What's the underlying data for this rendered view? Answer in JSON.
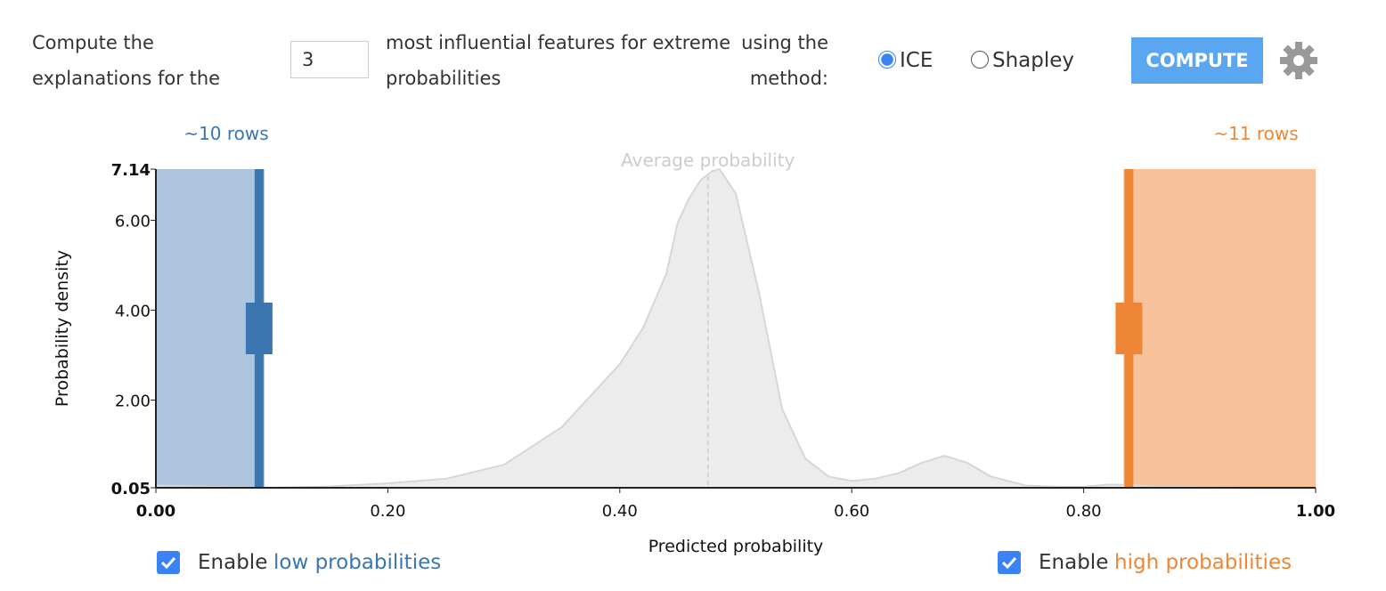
{
  "controls": {
    "sentence_1": "Compute the explanations for the",
    "feature_count": "3",
    "sentence_2": "most influential features for extreme probabilities",
    "sentence_3": "using the method:",
    "methods": [
      {
        "label": "ICE",
        "checked": true
      },
      {
        "label": "Shapley",
        "checked": false
      }
    ],
    "button": "COMPUTE"
  },
  "chart_data": {
    "type": "area",
    "annotation": "Average probability",
    "x_label": "Predicted probability",
    "y_label": "Probability density",
    "x": [
      0.0,
      0.05,
      0.1,
      0.15,
      0.2,
      0.25,
      0.3,
      0.35,
      0.4,
      0.42,
      0.44,
      0.45,
      0.46,
      0.47,
      0.48,
      0.486,
      0.5,
      0.52,
      0.54,
      0.56,
      0.58,
      0.6,
      0.62,
      0.64,
      0.66,
      0.68,
      0.7,
      0.72,
      0.75,
      0.78,
      0.8,
      0.82,
      0.84,
      0.86,
      0.9,
      0.95,
      1.0
    ],
    "values": [
      0.1,
      0.07,
      0.05,
      0.08,
      0.15,
      0.25,
      0.56,
      1.4,
      2.8,
      3.6,
      4.8,
      5.95,
      6.5,
      6.9,
      7.1,
      7.14,
      6.6,
      4.4,
      1.8,
      0.7,
      0.3,
      0.2,
      0.25,
      0.37,
      0.6,
      0.76,
      0.6,
      0.3,
      0.1,
      0.07,
      0.07,
      0.12,
      0.12,
      0.08,
      0.06,
      0.05,
      0.05
    ],
    "color": "#e8e9e8",
    "average": 0.476,
    "low": {
      "threshold": 0.089,
      "rows": "~10 rows",
      "color": "#3b76b0",
      "enable": "Enable",
      "label": "low probabilities",
      "checked": true
    },
    "high": {
      "threshold": 0.839,
      "rows": "~11 rows",
      "color": "#ef8636",
      "enable": "Enable",
      "label": "high probabilities",
      "checked": true
    },
    "xlim": [
      0,
      1
    ],
    "xticks": [
      {
        "value": 0,
        "label": "0.00"
      },
      {
        "value": 0.2,
        "label": "0.20"
      },
      {
        "value": 0.4,
        "label": "0.40"
      },
      {
        "value": 0.6,
        "label": "0.60"
      },
      {
        "value": 0.8,
        "label": "0.80"
      },
      {
        "value": 1,
        "label": "1.00"
      }
    ],
    "ylim": [
      0.05,
      7.14
    ],
    "yticks": [
      0.05,
      {
        "value": 2,
        "label": "2.00"
      },
      {
        "value": 4,
        "label": "4.00"
      },
      {
        "value": 6,
        "label": "6.00"
      },
      7.14
    ]
  }
}
